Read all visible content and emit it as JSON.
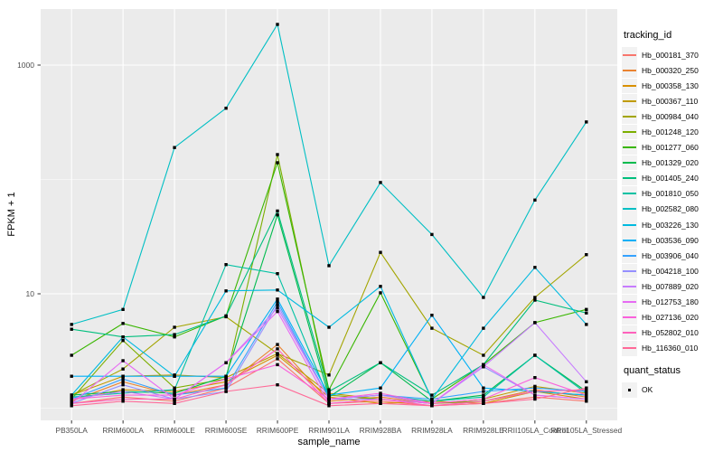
{
  "figure": {
    "y_axis": {
      "label": "FPKM + 1",
      "tick_labels": [
        "1000",
        "10"
      ]
    },
    "x_axis": {
      "label": "sample_name"
    },
    "legend": {
      "title": "tracking_id"
    },
    "legend2": {
      "title": "quant_status",
      "items": [
        {
          "label": "OK",
          "shape": "black-square"
        }
      ]
    }
  },
  "chart_data": {
    "type": "line",
    "title": "",
    "xlabel": "sample_name",
    "ylabel": "FPKM + 1",
    "y_scale": "log10",
    "y_ticks": [
      1000,
      10
    ],
    "y_minor_gridlines": [
      100,
      1
    ],
    "ylim_log10": [
      -0.11,
      3.49
    ],
    "grid": true,
    "panel_background": "#EBEBEB",
    "gridline_color": "#FFFFFF",
    "legend_position": "right",
    "legend_title": "tracking_id",
    "point_marker": "black-square",
    "quant_status_legend": "OK",
    "categories": [
      "PB350LA",
      "RRIM600LA",
      "RRIM600LE",
      "RRIM600SE",
      "RRIM600PE",
      "RRIM901LA",
      "RRIM928BA",
      "RRIM928LA",
      "RRIM928LE",
      "RRII105LA_Control",
      "RRII105LA_Stressed"
    ],
    "series": [
      {
        "name": "Hb_000181_370",
        "color": "#F8766D",
        "values": [
          1.1,
          1.25,
          1.15,
          1.5,
          2.7,
          1.1,
          1.15,
          1.05,
          1.1,
          1.25,
          1.15
        ]
      },
      {
        "name": "Hb_000320_250",
        "color": "#EA8331",
        "values": [
          1.15,
          1.7,
          1.3,
          1.6,
          3.6,
          1.15,
          1.25,
          1.1,
          1.15,
          1.45,
          1.25
        ]
      },
      {
        "name": "Hb_000358_130",
        "color": "#D89000",
        "values": [
          1.2,
          1.45,
          1.4,
          1.7,
          2.9,
          1.25,
          1.1,
          1.15,
          1.1,
          1.4,
          1.2
        ]
      },
      {
        "name": "Hb_000367_110",
        "color": "#C09B00",
        "values": [
          1.3,
          1.9,
          1.95,
          1.85,
          3.0,
          1.35,
          1.2,
          1.1,
          1.2,
          1.55,
          1.35
        ]
      },
      {
        "name": "Hb_000984_040",
        "color": "#A3A500",
        "values": [
          1.3,
          2.2,
          5.1,
          6.3,
          3.0,
          1.95,
          23.0,
          5.0,
          2.9,
          9.3,
          22.0
        ]
      },
      {
        "name": "Hb_001248_120",
        "color": "#7CAE00",
        "values": [
          1.2,
          3.9,
          1.5,
          1.8,
          165,
          1.3,
          1.2,
          1.1,
          1.15,
          1.4,
          1.3
        ]
      },
      {
        "name": "Hb_001277_060",
        "color": "#39B600",
        "values": [
          2.9,
          5.5,
          4.2,
          6.4,
          140,
          1.45,
          10.2,
          1.2,
          2.4,
          5.6,
          7.3
        ]
      },
      {
        "name": "Hb_001329_020",
        "color": "#00BB4E",
        "values": [
          1.3,
          1.4,
          1.35,
          1.9,
          49.0,
          1.25,
          2.5,
          1.15,
          1.3,
          2.9,
          1.4
        ]
      },
      {
        "name": "Hb_001405_240",
        "color": "#00BF7D",
        "values": [
          4.9,
          4.2,
          4.4,
          6.4,
          53.0,
          1.4,
          2.5,
          1.3,
          2.4,
          8.8,
          6.8
        ]
      },
      {
        "name": "Hb_001810_050",
        "color": "#00C1A3",
        "values": [
          1.25,
          1.35,
          1.45,
          18.0,
          15.0,
          1.2,
          1.3,
          1.15,
          1.25,
          2.9,
          1.35
        ]
      },
      {
        "name": "Hb_002582_080",
        "color": "#00BFC4",
        "values": [
          5.4,
          7.3,
          190,
          420,
          2270,
          17.6,
          94.0,
          33.0,
          9.3,
          66.0,
          318
        ]
      },
      {
        "name": "Hb_003226_130",
        "color": "#00BAE0",
        "values": [
          1.3,
          4.2,
          1.9,
          10.6,
          10.8,
          5.1,
          11.6,
          1.2,
          5.0,
          17.0,
          5.4
        ]
      },
      {
        "name": "Hb_003536_090",
        "color": "#00B0F6",
        "values": [
          1.9,
          1.9,
          1.9,
          1.9,
          9.0,
          1.3,
          1.5,
          6.5,
          1.5,
          1.4,
          1.3
        ]
      },
      {
        "name": "Hb_003906_040",
        "color": "#35A2FF",
        "values": [
          1.2,
          1.8,
          1.3,
          1.5,
          8.5,
          1.2,
          1.3,
          1.2,
          1.4,
          1.5,
          1.4
        ]
      },
      {
        "name": "Hb_004218_100",
        "color": "#9590FF",
        "values": [
          1.1,
          1.6,
          1.2,
          1.4,
          8.0,
          1.2,
          1.2,
          1.1,
          2.3,
          1.3,
          1.2
        ]
      },
      {
        "name": "Hb_007889_020",
        "color": "#C77CFF",
        "values": [
          1.2,
          1.4,
          1.2,
          2.5,
          7.5,
          1.2,
          1.3,
          1.1,
          2.3,
          5.6,
          1.7
        ]
      },
      {
        "name": "Hb_012753_180",
        "color": "#E76BF3",
        "values": [
          1.1,
          2.6,
          1.2,
          2.5,
          7.0,
          1.1,
          1.2,
          1.1,
          2.4,
          1.3,
          1.2
        ]
      },
      {
        "name": "Hb_027136_020",
        "color": "#FA62DB",
        "values": [
          1.2,
          1.3,
          1.3,
          1.8,
          2.4,
          1.2,
          1.35,
          1.1,
          1.2,
          1.85,
          1.3
        ]
      },
      {
        "name": "Hb_052802_010",
        "color": "#FF62BC",
        "values": [
          1.1,
          1.2,
          1.2,
          1.6,
          3.3,
          1.1,
          1.2,
          1.05,
          1.15,
          1.4,
          1.45
        ]
      },
      {
        "name": "Hb_116360_010",
        "color": "#FF6A98",
        "values": [
          1.05,
          1.15,
          1.1,
          1.4,
          1.6,
          1.05,
          1.1,
          1.05,
          1.1,
          1.2,
          1.5
        ]
      }
    ]
  }
}
